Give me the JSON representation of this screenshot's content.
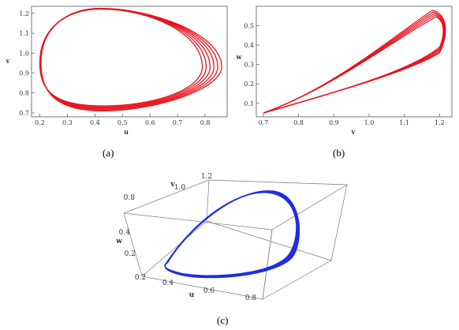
{
  "chart_data": [
    {
      "type": "line",
      "panel": "a",
      "caption": "(a)",
      "xlabel": "u",
      "ylabel": "v",
      "xlim": [
        0.17,
        0.88
      ],
      "ylim": [
        0.68,
        1.235
      ],
      "xticks": [
        "0.2",
        "0.3",
        "0.4",
        "0.5",
        "0.6",
        "0.7",
        "0.8"
      ],
      "yticks": [
        "0.7",
        "0.8",
        "0.9",
        "1.0",
        "1.1",
        "1.2"
      ],
      "series_color": "#e8141e",
      "orbit": {
        "left_u": 0.2,
        "right_u_range": [
          0.79,
          0.86
        ],
        "peak_u": 0.42,
        "v_top": 1.225,
        "v_bottom_range": [
          0.71,
          0.735
        ],
        "v_center": 0.95,
        "v_right_point": 0.93,
        "loops": 6
      }
    },
    {
      "type": "line",
      "panel": "b",
      "caption": "(b)",
      "xlabel": "v",
      "ylabel": "w",
      "xlim": [
        0.68,
        1.235
      ],
      "ylim": [
        0.03,
        0.6
      ],
      "xticks": [
        "0.7",
        "0.8",
        "0.9",
        "1.0",
        "1.1",
        "1.2"
      ],
      "yticks": [
        "0.1",
        "0.2",
        "0.3",
        "0.4",
        "0.5"
      ],
      "series_color": "#e8141e",
      "orbit": {
        "start": [
          0.7,
          0.05
        ],
        "peak": [
          1.18,
          0.58
        ],
        "right_v": 1.225,
        "lower_branch": [
          [
            0.7,
            0.05
          ],
          [
            0.95,
            0.18
          ],
          [
            1.1,
            0.26
          ],
          [
            1.2,
            0.36
          ]
        ],
        "loops": 5
      }
    },
    {
      "type": "line",
      "panel": "c",
      "caption": "(c)",
      "xlabel": "u",
      "ylabel": "w",
      "zlabel": "v",
      "xticks": [
        "0.2",
        "0.4",
        "0.6",
        "0.8"
      ],
      "yticks": [
        "0.2",
        "0.4",
        "0.8"
      ],
      "zticks": [
        "1.0",
        "1.2"
      ],
      "series_color": "#1f2ee0",
      "loops": 6
    }
  ]
}
